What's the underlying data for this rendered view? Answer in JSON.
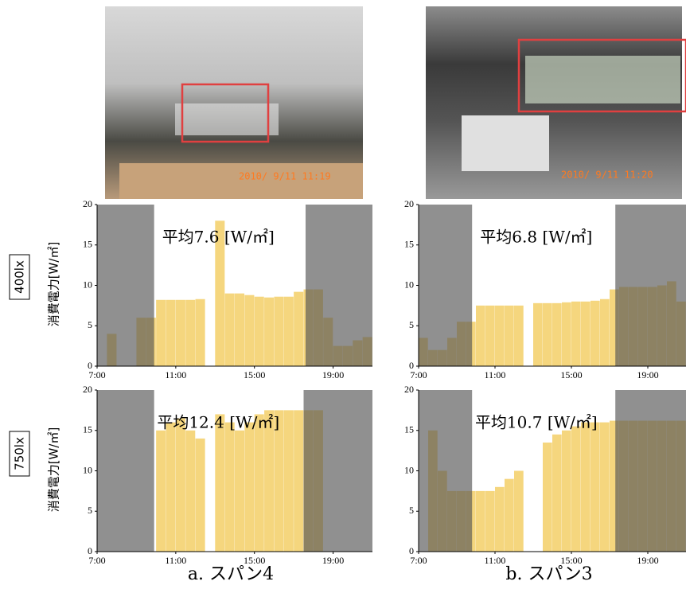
{
  "photos": [
    {
      "timestamp": "2010/ 9/11 11:19"
    },
    {
      "timestamp": "2010/ 9/11 11:20"
    }
  ],
  "rows": [
    "400lx",
    "750lx"
  ],
  "y_label": "消費電力[W/㎡]",
  "captions": [
    "a. スパン4",
    "b. スパン3"
  ],
  "chart_data": [
    {
      "type": "bar",
      "annotation": "平均7.6 [W/㎡]",
      "color": "#f5d67e",
      "shade_color": "#555555",
      "x": [
        7,
        7.5,
        8,
        8.5,
        9,
        9.5,
        10,
        10.5,
        11,
        11.5,
        12,
        12.5,
        13,
        13.5,
        14,
        14.5,
        15,
        15.5,
        16,
        16.5,
        17,
        17.5,
        18,
        18.5,
        19,
        19.5,
        20,
        20.5
      ],
      "values": [
        0,
        4,
        0,
        0,
        6,
        6,
        8.2,
        8.2,
        8.2,
        8.2,
        8.3,
        0,
        18,
        9,
        9,
        8.8,
        8.6,
        8.5,
        8.6,
        8.6,
        9.2,
        9.5,
        9.5,
        6,
        2.5,
        2.5,
        3.2,
        3.6
      ],
      "shaded": [
        [
          7,
          9.9
        ],
        [
          17.6,
          21
        ]
      ],
      "xlim": [
        7,
        21
      ],
      "ylim": [
        0,
        20
      ],
      "yticks": [
        0,
        5,
        10,
        15,
        20
      ],
      "xticks": [
        {
          "value": 7,
          "label": "7:00"
        },
        {
          "value": 11,
          "label": "11:00"
        },
        {
          "value": 15,
          "label": "15:00"
        },
        {
          "value": 19,
          "label": "19:00"
        }
      ]
    },
    {
      "type": "bar",
      "annotation": "平均6.8 [W/㎡]",
      "color": "#f5d67e",
      "shade_color": "#555555",
      "x": [
        7,
        7.5,
        8,
        8.5,
        9,
        9.5,
        10,
        10.5,
        11,
        11.5,
        12,
        12.5,
        13,
        13.5,
        14,
        14.5,
        15,
        15.5,
        16,
        16.5,
        17,
        17.5,
        18,
        18.5,
        19,
        19.5,
        20,
        20.5
      ],
      "values": [
        3.5,
        2,
        2,
        3.5,
        5.5,
        5.5,
        7.5,
        7.5,
        7.5,
        7.5,
        7.5,
        0,
        7.8,
        7.8,
        7.8,
        7.9,
        8,
        8,
        8.1,
        8.3,
        9.5,
        9.8,
        9.8,
        9.8,
        9.8,
        10,
        10.5,
        8
      ],
      "shaded": [
        [
          7,
          9.8
        ],
        [
          17.3,
          21
        ]
      ],
      "xlim": [
        7,
        21
      ],
      "ylim": [
        0,
        20
      ],
      "yticks": [
        0,
        5,
        10,
        15,
        20
      ],
      "xticks": [
        {
          "value": 7,
          "label": "7:00"
        },
        {
          "value": 11,
          "label": "11:00"
        },
        {
          "value": 15,
          "label": "15:00"
        },
        {
          "value": 19,
          "label": "19:00"
        }
      ]
    },
    {
      "type": "bar",
      "annotation": "平均12.4 [W/㎡]",
      "color": "#f5d67e",
      "shade_color": "#555555",
      "x": [
        7,
        7.5,
        8,
        8.5,
        9,
        9.5,
        10,
        10.5,
        11,
        11.5,
        12,
        12.5,
        13,
        13.5,
        14,
        14.5,
        15,
        15.5,
        16,
        16.5,
        17,
        17.5,
        18,
        18.5,
        19,
        19.5,
        20,
        20.5
      ],
      "values": [
        0,
        0,
        0,
        0,
        0,
        0,
        15,
        16,
        16.5,
        15,
        14,
        0,
        17,
        16,
        15,
        16,
        17,
        17.5,
        17.5,
        17.5,
        17.5,
        17.5,
        17.5,
        0,
        0,
        0,
        0,
        0
      ],
      "shaded": [
        [
          7,
          9.9
        ],
        [
          17.5,
          21
        ]
      ],
      "xlim": [
        7,
        21
      ],
      "ylim": [
        0,
        20
      ],
      "yticks": [
        0,
        5,
        10,
        15,
        20
      ],
      "xticks": [
        {
          "value": 7,
          "label": "7:00"
        },
        {
          "value": 11,
          "label": "11:00"
        },
        {
          "value": 15,
          "label": "15:00"
        },
        {
          "value": 19,
          "label": "19:00"
        }
      ]
    },
    {
      "type": "bar",
      "annotation": "平均10.7 [W/㎡]",
      "color": "#f5d67e",
      "shade_color": "#555555",
      "x": [
        7,
        7.5,
        8,
        8.5,
        9,
        9.5,
        10,
        10.5,
        11,
        11.5,
        12,
        12.5,
        13,
        13.5,
        14,
        14.5,
        15,
        15.5,
        16,
        16.5,
        17,
        17.5,
        18,
        18.5,
        19,
        19.5,
        20,
        20.5
      ],
      "values": [
        0,
        15,
        10,
        7.5,
        7.5,
        7.5,
        7.5,
        7.5,
        8,
        9,
        10,
        0,
        0,
        13.5,
        14.5,
        15,
        15.5,
        16,
        16,
        16,
        16.2,
        16.2,
        16.2,
        16.2,
        16.2,
        16.2,
        16.2,
        16.2
      ],
      "shaded": [
        [
          7,
          9.8
        ],
        [
          17.3,
          21
        ]
      ],
      "xlim": [
        7,
        21
      ],
      "ylim": [
        0,
        20
      ],
      "yticks": [
        0,
        5,
        10,
        15,
        20
      ],
      "xticks": [
        {
          "value": 7,
          "label": "7:00"
        },
        {
          "value": 11,
          "label": "11:00"
        },
        {
          "value": 15,
          "label": "15:00"
        },
        {
          "value": 19,
          "label": "19:00"
        }
      ]
    }
  ]
}
